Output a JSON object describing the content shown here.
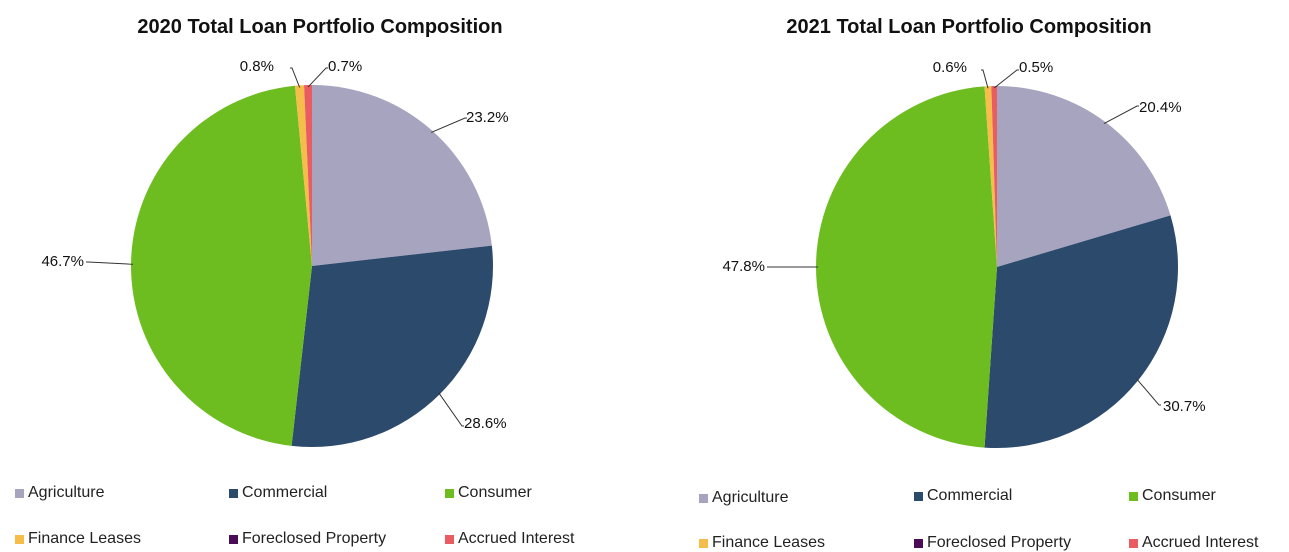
{
  "chart_data": [
    {
      "type": "pie",
      "title": "2020 Total Loan Portfolio Composition",
      "categories": [
        "Agriculture",
        "Commercial",
        "Consumer",
        "Finance Leases",
        "Foreclosed Property",
        "Accrued Interest"
      ],
      "values": [
        23.2,
        28.6,
        46.7,
        0.8,
        0.0,
        0.7
      ],
      "labels": [
        "23.2%",
        "28.6%",
        "46.7%",
        "0.8%",
        "",
        "0.7%"
      ],
      "colors": [
        "#a7a4c0",
        "#2c4a6c",
        "#6dbd20",
        "#f5be4b",
        "#4b0b57",
        "#e85c62"
      ],
      "legend_position": "bottom"
    },
    {
      "type": "pie",
      "title": "2021 Total Loan Portfolio Composition",
      "categories": [
        "Agriculture",
        "Commercial",
        "Consumer",
        "Finance Leases",
        "Foreclosed Property",
        "Accrued Interest"
      ],
      "values": [
        20.4,
        30.7,
        47.8,
        0.6,
        0.0,
        0.5
      ],
      "labels": [
        "20.4%",
        "30.7%",
        "47.8%",
        "0.6%",
        "",
        "0.5%"
      ],
      "colors": [
        "#a7a4c0",
        "#2c4a6c",
        "#6dbd20",
        "#f5be4b",
        "#4b0b57",
        "#e85c62"
      ],
      "legend_position": "bottom"
    }
  ]
}
